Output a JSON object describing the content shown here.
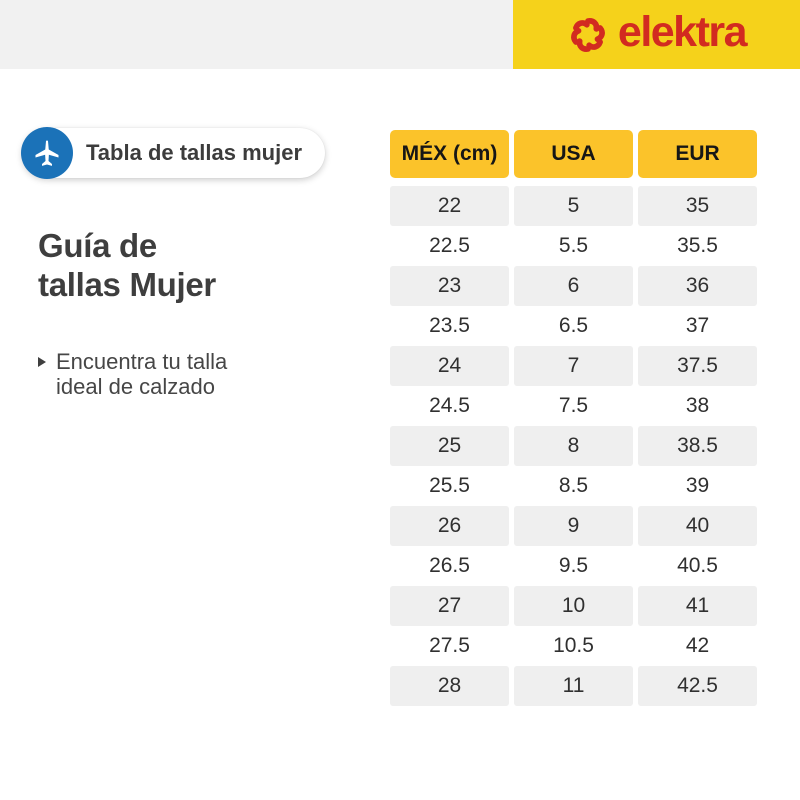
{
  "colors": {
    "bar_gray": "#F1F1F1",
    "bar_yellow": "#F5D21B",
    "brand_red": "#D22B20",
    "circle_blue": "#1B72B8",
    "header_yellow": "#FBC32A",
    "row_gray": "#EFEFEF",
    "text_dark": "#3C3C3C"
  },
  "header": {
    "brand": "elektra"
  },
  "badge": {
    "label": "Tabla de tallas mujer",
    "icon": "airplane-icon"
  },
  "intro": {
    "title_line1": "Guía de",
    "title_line2": "tallas Mujer",
    "bullet_line1": "Encuentra tu talla",
    "bullet_line2": "ideal de calzado"
  },
  "table": {
    "headers": [
      "MÉX (cm)",
      "USA",
      "EUR"
    ],
    "rows": [
      [
        "22",
        "5",
        "35"
      ],
      [
        "22.5",
        "5.5",
        "35.5"
      ],
      [
        "23",
        "6",
        "36"
      ],
      [
        "23.5",
        "6.5",
        "37"
      ],
      [
        "24",
        "7",
        "37.5"
      ],
      [
        "24.5",
        "7.5",
        "38"
      ],
      [
        "25",
        "8",
        "38.5"
      ],
      [
        "25.5",
        "8.5",
        "39"
      ],
      [
        "26",
        "9",
        "40"
      ],
      [
        "26.5",
        "9.5",
        "40.5"
      ],
      [
        "27",
        "10",
        "41"
      ],
      [
        "27.5",
        "10.5",
        "42"
      ],
      [
        "28",
        "11",
        "42.5"
      ]
    ]
  }
}
